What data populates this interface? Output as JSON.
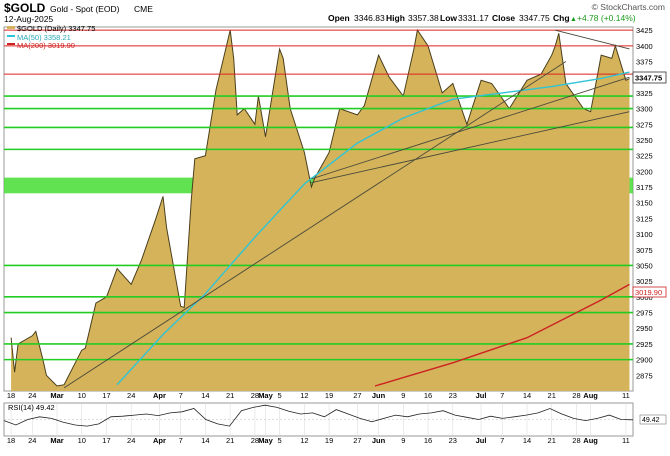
{
  "header": {
    "symbol": "$GOLD",
    "name": "Gold - Spot (EOD)",
    "exchange": "CME",
    "watermark": "© StockCharts.com",
    "date": "12-Aug-2025",
    "open_label": "Open",
    "open": "3346.83",
    "high_label": "High",
    "high": "3357.38",
    "low_label": "Low",
    "low": "3331.17",
    "close_label": "Close",
    "close": "3347.75",
    "chg_label": "Chg",
    "chg": "+4.78 (+0.14%)",
    "chg_arrow": "▲"
  },
  "legend": [
    {
      "label": "$GOLD (Daily) 3347.75",
      "color": "#d4a83a"
    },
    {
      "label": "MA(50) 3358.21",
      "color": "#2ec4d6"
    },
    {
      "label": "MA(200) 3019.90",
      "color": "#cc2222"
    }
  ],
  "rsi": {
    "label": "RSI(14) 49.42",
    "value_label": "49.42",
    "value": 49.42
  },
  "colors": {
    "area_fill": "#d4b35a",
    "area_line": "#4a3f1c",
    "ma50": "#2ec4d6",
    "ma200": "#cc2222",
    "support": "#22cc22",
    "resistance": "#dd2222",
    "trend": "#4a4a3a",
    "zone": "#44dd33"
  },
  "chart_data": {
    "type": "area",
    "title": "$GOLD Gold - Spot (EOD) CME",
    "ylim": [
      2850,
      3430
    ],
    "y_ticks": [
      2875,
      2900,
      2925,
      2950,
      2975,
      3000,
      3025,
      3050,
      3075,
      3100,
      3125,
      3150,
      3175,
      3200,
      3225,
      3250,
      3275,
      3300,
      3325,
      3350,
      3375,
      3400,
      3425
    ],
    "x_ticks": [
      "18",
      "24",
      "Mar",
      "10",
      "17",
      "24",
      "Apr",
      "7",
      "14",
      "21",
      "28",
      "May",
      "5",
      "12",
      "19",
      "27",
      "Jun",
      "9",
      "16",
      "23",
      "Jul",
      "7",
      "14",
      "21",
      "28",
      "Aug",
      "11"
    ],
    "series": [
      {
        "name": "$GOLD (Daily)",
        "x": [
          "2025-02-18",
          "2025-02-19",
          "2025-02-20",
          "2025-02-24",
          "2025-02-25",
          "2025-02-27",
          "2025-02-28",
          "2025-03-03",
          "2025-03-05",
          "2025-03-10",
          "2025-03-11",
          "2025-03-14",
          "2025-03-17",
          "2025-03-20",
          "2025-03-24",
          "2025-03-27",
          "2025-03-31",
          "2025-04-02",
          "2025-04-03",
          "2025-04-07",
          "2025-04-08",
          "2025-04-10",
          "2025-04-11",
          "2025-04-14",
          "2025-04-17",
          "2025-04-21",
          "2025-04-22",
          "2025-04-23",
          "2025-04-25",
          "2025-04-28",
          "2025-04-29",
          "2025-05-01",
          "2025-05-05",
          "2025-05-06",
          "2025-05-08",
          "2025-05-12",
          "2025-05-14",
          "2025-05-15",
          "2025-05-19",
          "2025-05-22",
          "2025-05-27",
          "2025-05-29",
          "2025-06-02",
          "2025-06-05",
          "2025-06-09",
          "2025-06-12",
          "2025-06-13",
          "2025-06-16",
          "2025-06-20",
          "2025-06-23",
          "2025-06-27",
          "2025-07-01",
          "2025-07-04",
          "2025-07-09",
          "2025-07-14",
          "2025-07-18",
          "2025-07-21",
          "2025-07-22",
          "2025-07-23",
          "2025-07-25",
          "2025-07-30",
          "2025-08-01",
          "2025-08-04",
          "2025-08-07",
          "2025-08-08",
          "2025-08-11",
          "2025-08-12"
        ],
        "values": [
          2935,
          2880,
          2925,
          2938,
          2945,
          2900,
          2875,
          2858,
          2860,
          2915,
          2918,
          2990,
          3000,
          3045,
          3020,
          3060,
          3125,
          3160,
          3110,
          2985,
          2983,
          3155,
          3220,
          3225,
          3330,
          3425,
          3380,
          3290,
          3300,
          3275,
          3320,
          3255,
          3395,
          3380,
          3300,
          3230,
          3175,
          3190,
          3230,
          3300,
          3290,
          3305,
          3385,
          3350,
          3320,
          3395,
          3425,
          3400,
          3325,
          3340,
          3275,
          3345,
          3340,
          3300,
          3345,
          3355,
          3385,
          3400,
          3420,
          3340,
          3300,
          3295,
          3385,
          3380,
          3400,
          3345,
          3347.75
        ]
      },
      {
        "name": "MA(50)",
        "x": [
          "2025-03-20",
          "2025-04-02",
          "2025-04-14",
          "2025-04-28",
          "2025-05-12",
          "2025-05-27",
          "2025-06-09",
          "2025-06-23",
          "2025-07-07",
          "2025-07-21",
          "2025-08-04",
          "2025-08-12"
        ],
        "values": [
          2860,
          2940,
          3005,
          3095,
          3180,
          3245,
          3285,
          3315,
          3325,
          3335,
          3348,
          3358.21
        ]
      },
      {
        "name": "MA(200)",
        "x": [
          "2025-06-01",
          "2025-06-23",
          "2025-07-14",
          "2025-08-04",
          "2025-08-12"
        ],
        "values": [
          2858,
          2895,
          2935,
          2995,
          3019.9
        ]
      }
    ],
    "horizontal_lines": {
      "resistance": [
        3425,
        3400,
        3355
      ],
      "support": [
        3320,
        3300,
        3270,
        3235,
        3050,
        3000,
        2975,
        2925,
        2900
      ]
    },
    "support_zone": [
      3165,
      3190
    ],
    "trendlines": [
      {
        "from": [
          "2025-03-05",
          2855
        ],
        "to": [
          "2025-07-25",
          3375
        ]
      },
      {
        "from": [
          "2025-05-14",
          3188
        ],
        "to": [
          "2025-08-12",
          3350
        ]
      },
      {
        "from": [
          "2025-05-14",
          3182
        ],
        "to": [
          "2025-08-12",
          3295
        ]
      },
      {
        "from": [
          "2025-07-22",
          3425
        ],
        "to": [
          "2025-08-12",
          3395
        ]
      }
    ],
    "rsi_values": [
      48,
      40,
      50,
      55,
      52,
      45,
      40,
      38,
      42,
      55,
      56,
      58,
      60,
      57,
      62,
      64,
      70,
      50,
      42,
      38,
      66,
      72,
      76,
      72,
      65,
      60,
      62,
      55,
      68,
      60,
      52,
      46,
      52,
      58,
      55,
      60,
      62,
      66,
      58,
      54,
      50,
      56,
      52,
      55,
      58,
      62,
      70,
      60,
      52,
      48,
      52,
      58,
      50,
      49.42
    ]
  }
}
